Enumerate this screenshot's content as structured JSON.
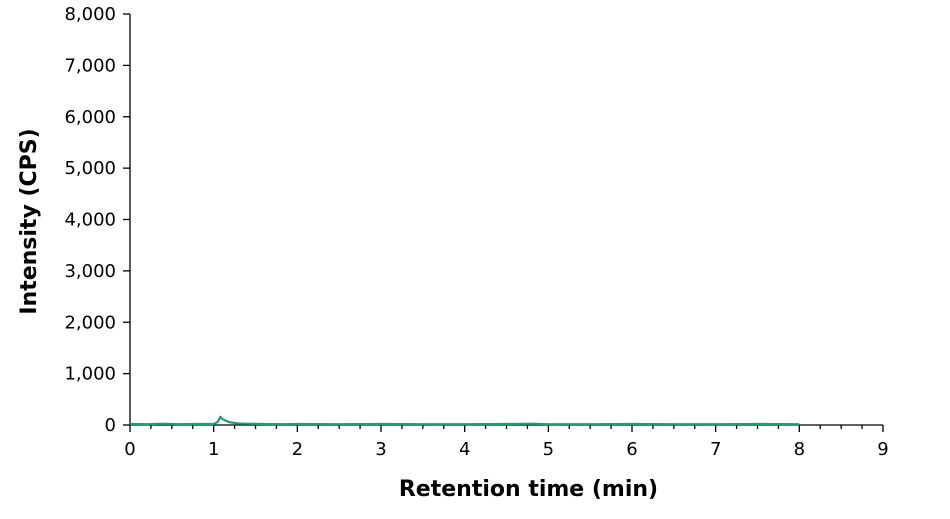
{
  "chart_data": {
    "type": "line",
    "title": "",
    "xlabel": "Retention time (min)",
    "ylabel": "Intensity (CPS)",
    "xlim": [
      0,
      9
    ],
    "ylim": [
      0,
      8000
    ],
    "x_ticks": [
      0,
      1,
      2,
      3,
      4,
      5,
      6,
      7,
      8,
      9
    ],
    "y_ticks": [
      0,
      1000,
      2000,
      3000,
      4000,
      5000,
      6000,
      7000,
      8000
    ],
    "x_tick_labels": [
      "0",
      "1",
      "2",
      "3",
      "4",
      "5",
      "6",
      "7",
      "8",
      "9"
    ],
    "y_tick_labels": [
      "0",
      "1,000",
      "2,000",
      "3,000",
      "4,000",
      "5,000",
      "6,000",
      "7,000",
      "8,000"
    ],
    "grid": false,
    "legend": "none",
    "series": [
      {
        "color": "#1f9e6e",
        "x": [
          0,
          0.2,
          0.4,
          0.6,
          0.8,
          1.0,
          1.05,
          1.08,
          1.1,
          1.15,
          1.2,
          1.3,
          1.4,
          1.6,
          1.8,
          2.0,
          2.5,
          3.0,
          3.5,
          4.0,
          4.5,
          4.8,
          5.0,
          5.5,
          6.0,
          6.5,
          7.0,
          7.5,
          8.0
        ],
        "y": [
          20,
          15,
          25,
          15,
          20,
          20,
          60,
          160,
          120,
          80,
          50,
          30,
          25,
          20,
          15,
          20,
          15,
          20,
          15,
          15,
          20,
          25,
          15,
          15,
          20,
          15,
          15,
          20,
          15
        ]
      }
    ]
  }
}
